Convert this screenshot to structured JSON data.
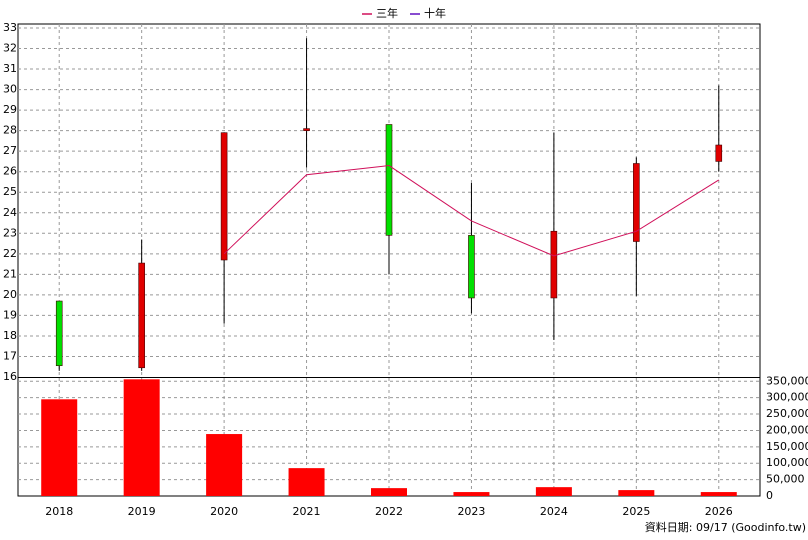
{
  "chart_data": [
    {
      "type": "candlestick",
      "categories": [
        "2018",
        "2019",
        "2020",
        "2021",
        "2022",
        "2023",
        "2024",
        "2025",
        "2026"
      ],
      "open": [
        19.7,
        16.45,
        21.7,
        28.0,
        28.3,
        22.9,
        19.85,
        22.6,
        26.5
      ],
      "close": [
        16.55,
        21.55,
        27.9,
        28.1,
        22.9,
        19.85,
        23.1,
        26.4,
        27.3
      ],
      "high": [
        19.7,
        22.7,
        27.9,
        32.5,
        28.3,
        25.45,
        27.9,
        26.7,
        30.2
      ],
      "low": [
        16.3,
        16.3,
        18.6,
        26.2,
        21.0,
        19.1,
        17.8,
        19.95,
        26.0
      ],
      "up_color": "#e00000",
      "down_color": "#00e000",
      "wick_color": "#000000",
      "series": [
        {
          "name": "三年",
          "color": "#d0105a",
          "values": [
            null,
            null,
            22.0,
            25.85,
            26.3,
            23.6,
            21.9,
            23.1,
            25.6
          ]
        },
        {
          "name": "十年",
          "color": "#6010c0",
          "values": [
            null,
            null,
            null,
            null,
            null,
            null,
            null,
            null,
            null
          ]
        }
      ],
      "ylim": [
        16,
        33
      ],
      "yticks": [
        16,
        17,
        18,
        19,
        20,
        21,
        22,
        23,
        24,
        25,
        26,
        27,
        28,
        29,
        30,
        31,
        32,
        33
      ],
      "grid": true
    },
    {
      "type": "bar",
      "values": [
        295000,
        356000,
        189000,
        85000,
        24000,
        12000,
        27000,
        18000,
        12000
      ],
      "color": "#ff0000",
      "ylim": [
        0,
        360000
      ],
      "yticks": [
        0,
        {
          "value": 50000,
          "label": "50,000"
        },
        {
          "value": 100000,
          "label": "100,000"
        },
        {
          "value": 150000,
          "label": "150,000"
        },
        {
          "value": 200000,
          "label": "200,000"
        },
        {
          "value": 250000,
          "label": "250,000"
        },
        {
          "value": 300000,
          "label": "300,000"
        },
        {
          "value": 350000,
          "label": "350,000"
        }
      ],
      "grid": true,
      "note": "資料日期: 09/17 (Goodinfo.tw)"
    }
  ]
}
